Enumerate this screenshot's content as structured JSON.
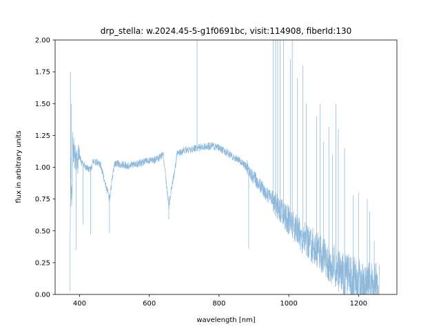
{
  "chart_data": {
    "type": "line",
    "title": "drp_stella: w.2024.45-5-g1f0691bc, visit:114908, fiberId:130",
    "xlabel": "wavelength [nm]",
    "ylabel": "flux in arbitrary units",
    "xlim": [
      330,
      1310
    ],
    "ylim": [
      0.0,
      2.0
    ],
    "xticks": [
      400,
      600,
      800,
      1000,
      1200
    ],
    "xtick_labels": [
      "400",
      "600",
      "800",
      "1000",
      "1200"
    ],
    "yticks": [
      0.0,
      0.25,
      0.5,
      0.75,
      1.0,
      1.25,
      1.5,
      1.75,
      2.0
    ],
    "ytick_labels": [
      "0.00",
      "0.25",
      "0.50",
      "0.75",
      "1.00",
      "1.25",
      "1.50",
      "1.75",
      "2.00"
    ],
    "grid": false,
    "series_color": "#8fb9db",
    "series": [
      {
        "x": [
          372,
          375,
          378,
          381,
          385,
          390,
          400,
          410,
          420,
          432,
          440,
          460,
          486,
          500,
          520,
          540,
          560,
          580,
          600,
          620,
          640,
          656,
          680,
          700,
          720,
          737,
          760,
          780,
          800,
          820,
          840,
          860,
          880,
          900,
          920,
          940,
          960,
          980,
          1000,
          1020,
          1040,
          1060,
          1080,
          1100,
          1120,
          1140,
          1160,
          1180,
          1200,
          1220,
          1240,
          1260
        ],
        "y": [
          0.05,
          1.0,
          0.7,
          1.15,
          1.1,
          1.05,
          1.08,
          1.02,
          1.0,
          0.98,
          1.05,
          1.02,
          0.75,
          1.03,
          1.02,
          1.01,
          1.02,
          1.04,
          1.05,
          1.06,
          1.1,
          0.7,
          1.1,
          1.13,
          1.14,
          1.15,
          1.16,
          1.17,
          1.15,
          1.12,
          1.08,
          1.05,
          1.0,
          0.92,
          0.85,
          0.78,
          0.72,
          0.65,
          0.58,
          0.52,
          0.45,
          0.4,
          0.35,
          0.3,
          0.25,
          0.2,
          0.15,
          0.12,
          0.09,
          0.07,
          0.05,
          0.04
        ]
      }
    ],
    "spikes": [
      {
        "x": 374,
        "y": 1.75
      },
      {
        "x": 376,
        "y": 1.5
      },
      {
        "x": 380,
        "y": 1.28
      },
      {
        "x": 390,
        "y": 0.35
      },
      {
        "x": 410,
        "y": 0.55
      },
      {
        "x": 432,
        "y": 0.47
      },
      {
        "x": 486,
        "y": 0.48
      },
      {
        "x": 656,
        "y": 0.59
      },
      {
        "x": 737,
        "y": 2.0
      },
      {
        "x": 885,
        "y": 0.36
      },
      {
        "x": 955,
        "y": 2.0
      },
      {
        "x": 962,
        "y": 2.0
      },
      {
        "x": 968,
        "y": 2.0
      },
      {
        "x": 975,
        "y": 2.0
      },
      {
        "x": 985,
        "y": 2.0
      },
      {
        "x": 1005,
        "y": 1.85
      },
      {
        "x": 1010,
        "y": 2.0
      },
      {
        "x": 1025,
        "y": 1.7
      },
      {
        "x": 1040,
        "y": 1.8
      },
      {
        "x": 1050,
        "y": 1.5
      },
      {
        "x": 1080,
        "y": 1.4
      },
      {
        "x": 1090,
        "y": 1.5
      },
      {
        "x": 1100,
        "y": 1.2
      },
      {
        "x": 1115,
        "y": 1.32
      },
      {
        "x": 1125,
        "y": 1.1
      },
      {
        "x": 1135,
        "y": 1.5
      },
      {
        "x": 1142,
        "y": 1.3
      },
      {
        "x": 1160,
        "y": 1.15
      },
      {
        "x": 1185,
        "y": 0.78
      },
      {
        "x": 1200,
        "y": 0.8
      },
      {
        "x": 1225,
        "y": 0.75
      },
      {
        "x": 1232,
        "y": 0.65
      },
      {
        "x": 1245,
        "y": 0.42
      }
    ]
  }
}
